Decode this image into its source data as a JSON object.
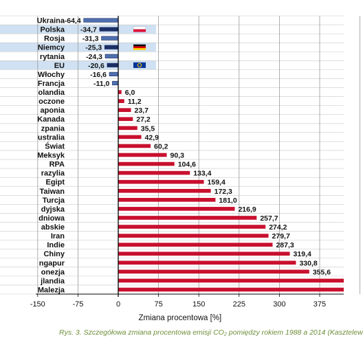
{
  "chart_data": {
    "type": "bar",
    "orientation": "horizontal",
    "categories": [
      "Ukraina",
      "Polska",
      "Rosja",
      "Niemcy",
      "rytania",
      "EU",
      "Włochy",
      "Francja",
      "olandia",
      "oczone",
      "aponia",
      "Kanada",
      "zpania",
      "ustralia",
      "Świat",
      "Meksyk",
      "RPA",
      "razylia",
      "Egipt",
      "Taiwan",
      "Turcja",
      "dyjska",
      "dniowa",
      "abskie",
      "Iran",
      "Indie",
      "Chiny",
      "ngapur",
      "onezja",
      "jlandia",
      "Malezja"
    ],
    "values": [
      -64.4,
      -34.7,
      -31.3,
      -25.3,
      -24.3,
      -20.6,
      -16.6,
      -11.0,
      6.0,
      11.2,
      23.7,
      27.2,
      35.5,
      42.9,
      60.2,
      90.3,
      104.6,
      133.4,
      159.4,
      172.3,
      181.0,
      216.9,
      257.7,
      274.2,
      279.7,
      287.3,
      319.4,
      330.8,
      355.6,
      null,
      null
    ],
    "value_labels": [
      "-64,4",
      "-34,7",
      "-31,3",
      "-25,3",
      "-24,3",
      "-20,6",
      "-16,6",
      "-11,0",
      "6,0",
      "11,2",
      "23,7",
      "27,2",
      "35,5",
      "42,9",
      "60,2",
      "90,3",
      "104,6",
      "133,4",
      "159,4",
      "172,3",
      "181,0",
      "216,9",
      "257,7",
      "274,2",
      "279,7",
      "287,3",
      "319,4",
      "330,8",
      "355,6",
      "",
      ""
    ],
    "highlighted_rows": [
      "Polska",
      "Niemcy",
      "EU"
    ],
    "flags": [
      {
        "row": "Polska",
        "name": "poland-flag-icon"
      },
      {
        "row": "Niemcy",
        "name": "germany-flag-icon"
      },
      {
        "row": "EU",
        "name": "eu-flag-icon"
      }
    ],
    "xlim": [
      -150,
      450
    ],
    "xticks": [
      -150,
      -75,
      0,
      75,
      150,
      225,
      300,
      375
    ],
    "xtick_labels": [
      "-150",
      "-75",
      "0",
      "75",
      "150",
      "225",
      "300",
      "375"
    ],
    "xlabel": "Zmiana procentowa [%]",
    "grid": true,
    "colors": {
      "negative": "#4e6fae",
      "negative_dark": "#1c2f66",
      "positive": "#c8102e",
      "highlight_row": "#cfe1f2",
      "grid": "#9a9a9a",
      "caption": "#6e8e3a"
    }
  },
  "caption": "Rys. 3. Szczegółowa zmiana procentowa emisji CO₂ pomiędzy rokiem 1988 a 2014 (Kasztelew"
}
